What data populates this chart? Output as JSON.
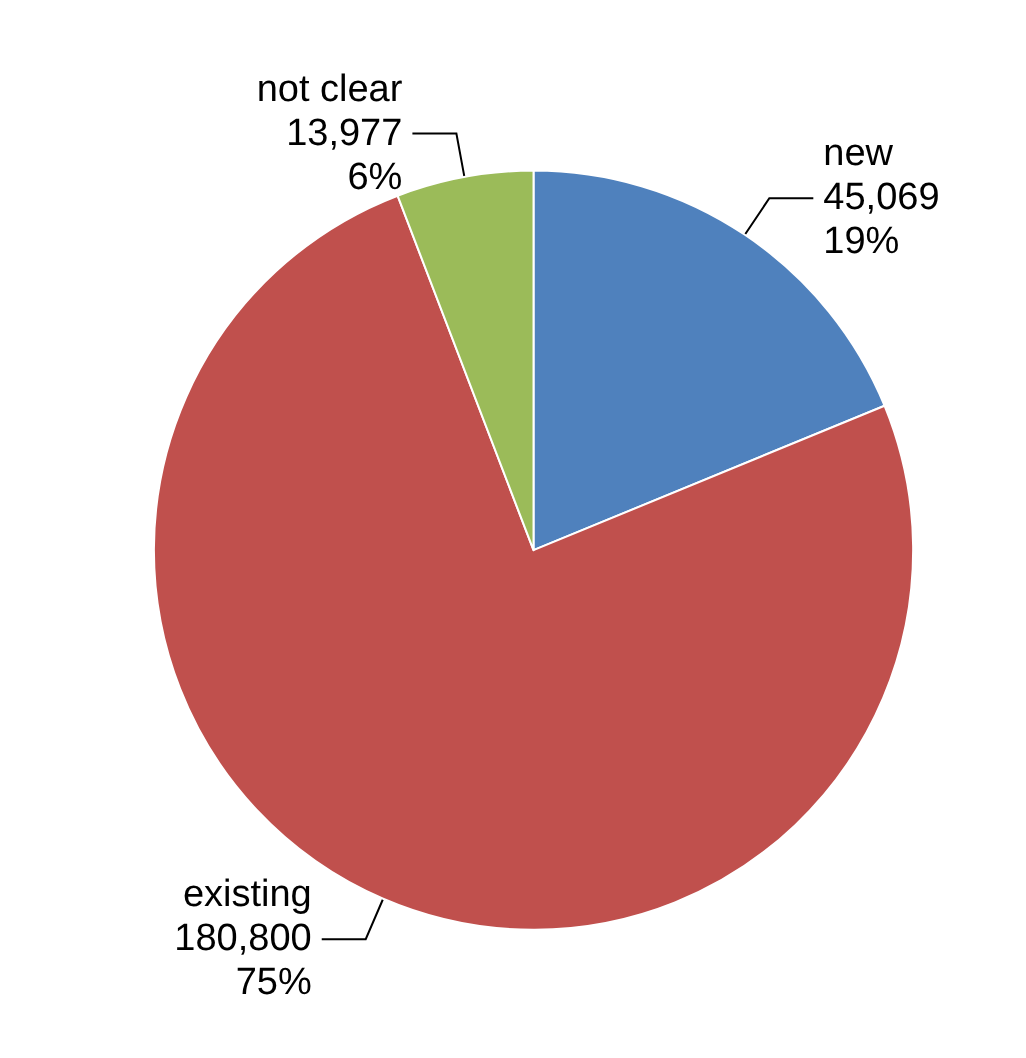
{
  "chart_data": {
    "type": "pie",
    "categories": [
      "new",
      "existing",
      "not clear"
    ],
    "values": [
      45069,
      180800,
      13977
    ],
    "value_labels": [
      "45,069\n19%",
      "180,800\n75%",
      "13,977\n6%"
    ],
    "colors": [
      "#4f81bd",
      "#c0504d",
      "#9bbb59"
    ],
    "legend": false
  }
}
